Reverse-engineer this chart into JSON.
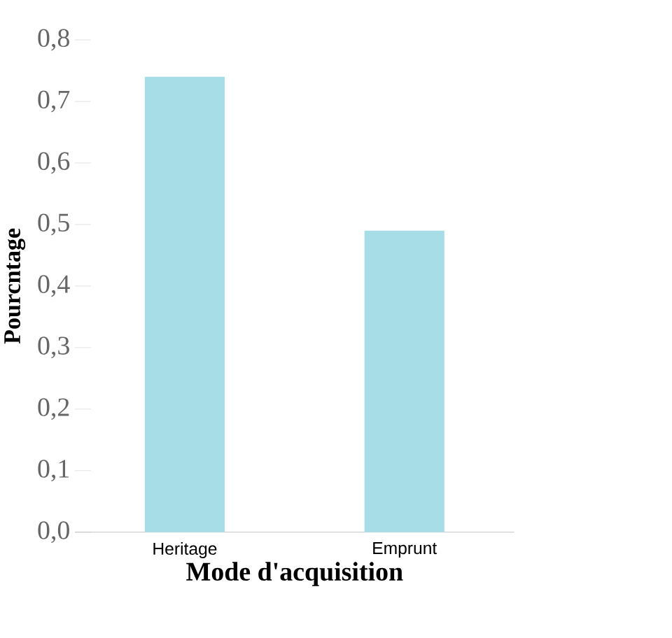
{
  "chart_data": {
    "type": "bar",
    "xlabel": "Mode d'acquisition",
    "ylabel": "Pourcntage",
    "categories": [
      "Heritage",
      "Emprunt"
    ],
    "values": [
      0.74,
      0.49
    ],
    "color": "#a6dde6",
    "ylim": [
      0,
      0.8
    ],
    "yticks": [
      {
        "value": 0.0,
        "label": "0,0"
      },
      {
        "value": 0.1,
        "label": "0,1"
      },
      {
        "value": 0.2,
        "label": "0,2"
      },
      {
        "value": 0.3,
        "label": "0,3"
      },
      {
        "value": 0.4,
        "label": "0,4"
      },
      {
        "value": 0.5,
        "label": "0,5"
      },
      {
        "value": 0.6,
        "label": "0,6"
      },
      {
        "value": 0.7,
        "label": "0,7"
      },
      {
        "value": 0.8,
        "label": "0,8"
      }
    ],
    "grid": false
  }
}
